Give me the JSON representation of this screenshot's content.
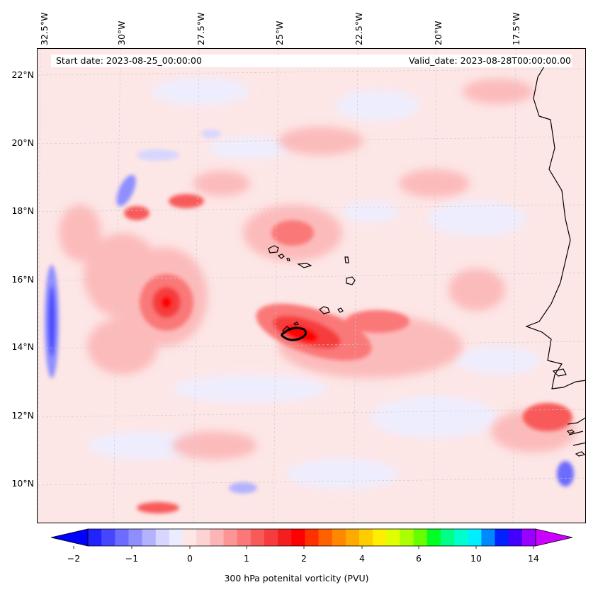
{
  "map": {
    "title_start": "Start date: 2023-08-25_00:00:00",
    "title_valid": "Valid_date: 2023-08-28T00:00:00.00",
    "lon_labels": [
      "32.5°W",
      "30°W",
      "27.5°W",
      "25°W",
      "22.5°W",
      "20°W",
      "17.5°W"
    ],
    "lat_labels": [
      "22°N",
      "20°N",
      "18°N",
      "16°N",
      "14°N",
      "12°N",
      "10°N"
    ],
    "region": "Cape Verde / West African coast",
    "colors": {
      "background_tint": "#fde6e6",
      "coastline": "#000000",
      "gridline": "#c8c8c8"
    }
  },
  "colorbar": {
    "label": "300 hPa potenital vorticity (PVU)",
    "ticks": [
      "−2",
      "−1",
      "0",
      "1",
      "2",
      "4",
      "6",
      "10",
      "14"
    ],
    "under_color": "#0000ff",
    "over_color": "#cc00ff",
    "colors": [
      "#2222ff",
      "#4646ff",
      "#6c6cff",
      "#8e8eff",
      "#b2b2ff",
      "#d6d6ff",
      "#ececff",
      "#fde6e6",
      "#fdd2d2",
      "#fcb4b4",
      "#fc9696",
      "#fa7878",
      "#f85a5a",
      "#f63c3c",
      "#f41e1e",
      "#ff0000",
      "#ff3000",
      "#ff6000",
      "#ff8800",
      "#ffaa00",
      "#ffcc00",
      "#ffee00",
      "#ddff00",
      "#aaff00",
      "#66ff00",
      "#00ff22",
      "#00ff88",
      "#00ffcc",
      "#00eeff",
      "#0088ff",
      "#0022ff",
      "#4400ff",
      "#9900ff"
    ]
  }
}
